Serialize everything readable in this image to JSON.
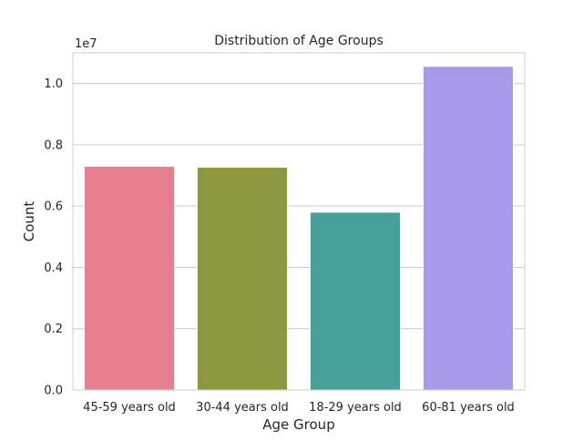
{
  "chart_data": {
    "type": "bar",
    "title": "Distribution of Age Groups",
    "xlabel": "Age Group",
    "ylabel": "Count",
    "offset_label": "1e7",
    "categories": [
      "45-59 years old",
      "30-44 years old",
      "18-29 years old",
      "60-81 years old"
    ],
    "values": [
      7300000,
      7270000,
      5800000,
      10560000
    ],
    "colors": [
      "#e77f91",
      "#8c973f",
      "#45a09a",
      "#a999e9"
    ],
    "ylim": [
      0,
      11000000
    ],
    "yticks": [
      {
        "value": 0,
        "label": "0.0"
      },
      {
        "value": 2000000,
        "label": "0.2"
      },
      {
        "value": 4000000,
        "label": "0.4"
      },
      {
        "value": 6000000,
        "label": "0.6"
      },
      {
        "value": 8000000,
        "label": "0.8"
      },
      {
        "value": 10000000,
        "label": "1.0"
      }
    ],
    "grid": true,
    "legend": "none"
  }
}
